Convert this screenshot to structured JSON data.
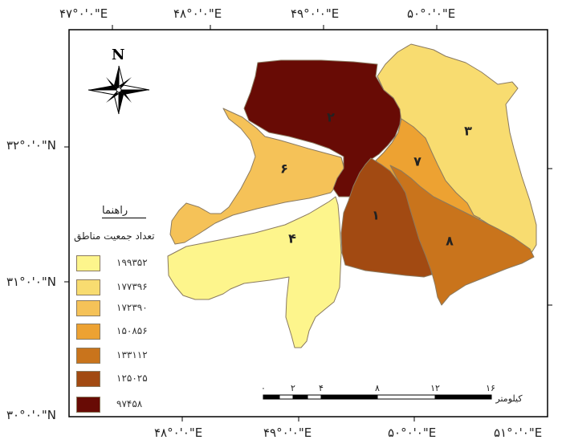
{
  "coordinates": {
    "top": [
      "۴۷°۰'۰\"E",
      "۴۸°۰'۰\"E",
      "۴۹°۰'۰\"E",
      "۵۰°۰'۰\"E"
    ],
    "bottom": [
      "۴۸°۰'۰\"E",
      "۴۹°۰'۰\"E",
      "۵۰°۰'۰\"E",
      "۵۱°۰'۰\"E"
    ],
    "left": [
      "۳۲°۰'۰\"N",
      "۳۱°۰'۰\"N",
      "۳۰°۰'۰\"N"
    ]
  },
  "north_arrow": {
    "label": "N"
  },
  "legend": {
    "heading": "راهنما",
    "subheading": "تعداد جمعیت مناطق",
    "items": [
      {
        "label": "۱۹۹۳۵۲",
        "color": "#fdf58c"
      },
      {
        "label": "۱۷۷۳۹۶",
        "color": "#f8dc70"
      },
      {
        "label": "۱۷۲۳۹۰",
        "color": "#f5c258"
      },
      {
        "label": "۱۵۰۸۵۶",
        "color": "#eda232"
      },
      {
        "label": "۱۳۳۱۱۲",
        "color": "#c9741c"
      },
      {
        "label": "۱۲۵۰۲۵",
        "color": "#a24a12"
      },
      {
        "label": "۹۷۴۵۸",
        "color": "#680b05"
      }
    ]
  },
  "zones": [
    {
      "label": "۱",
      "color": "#a24a12"
    },
    {
      "label": "۲",
      "color": "#680b05"
    },
    {
      "label": "۳",
      "color": "#f8dc70"
    },
    {
      "label": "۴",
      "color": "#fdf58c"
    },
    {
      "label": "۶",
      "color": "#f5c258"
    },
    {
      "label": "۷",
      "color": "#eda232"
    },
    {
      "label": "۸",
      "color": "#c9741c"
    }
  ],
  "scale_bar": {
    "ticks": [
      "۰",
      "۲",
      "۴",
      "۸",
      "۱۲",
      "۱۶"
    ],
    "unit": "کیلومتر"
  }
}
